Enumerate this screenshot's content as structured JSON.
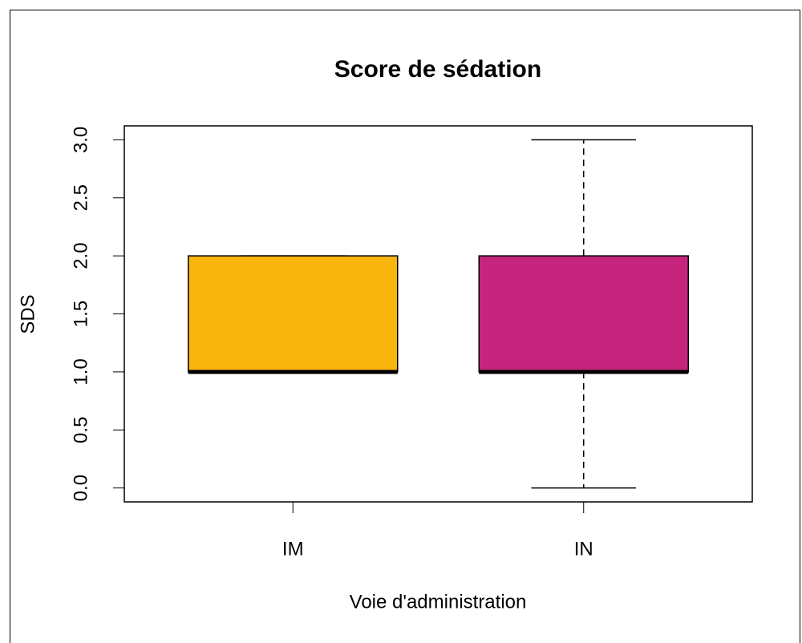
{
  "chart_data": {
    "type": "boxplot",
    "title": "Score de sédation",
    "xlabel": "Voie d'administration",
    "ylabel": "SDS",
    "categories": [
      "IM",
      "IN"
    ],
    "boxes": [
      {
        "min": 1,
        "q1": 1,
        "median": 1,
        "q3": 2,
        "max": 2,
        "color": "#fbb50f"
      },
      {
        "min": 0,
        "q1": 1,
        "median": 1,
        "q3": 2,
        "max": 3,
        "color": "#c5257d"
      }
    ],
    "ylim": [
      -0.12,
      3.12
    ],
    "yticks": [
      {
        "value": 0,
        "label": "0.0"
      },
      {
        "value": 0.5,
        "label": "0.5"
      },
      {
        "value": 1,
        "label": "1.0"
      },
      {
        "value": 1.5,
        "label": "1.5"
      },
      {
        "value": 2,
        "label": "2.0"
      },
      {
        "value": 2.5,
        "label": "2.5"
      },
      {
        "value": 3,
        "label": "3.0"
      }
    ]
  }
}
